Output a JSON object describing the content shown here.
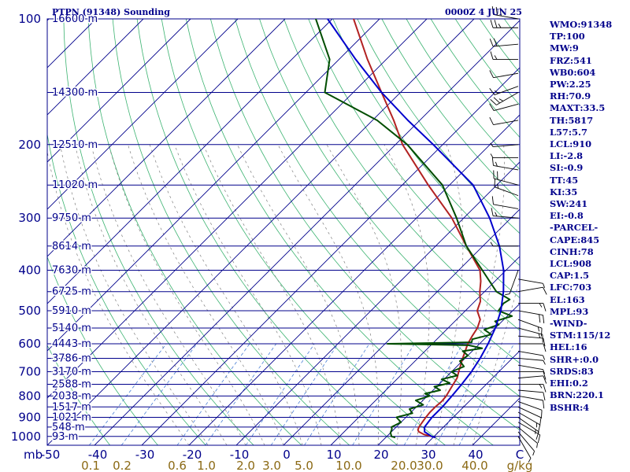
{
  "header": {
    "title": "PTPN (91348) Sounding",
    "time": "0000Z  4 JUN 25"
  },
  "chart_data": {
    "type": "skew-t log-p sounding",
    "y_axis": {
      "label": "mb",
      "pressure_levels": [
        100,
        200,
        300,
        400,
        500,
        600,
        700,
        800,
        900,
        1000
      ],
      "tick_labels": [
        "100",
        "200",
        "300",
        "400",
        "500",
        "600",
        "700",
        "800",
        "900",
        "1000"
      ],
      "range": [
        1050,
        100
      ],
      "scale": "log"
    },
    "x_axis": {
      "label": "°C",
      "temperature_ticks": [
        -50,
        -40,
        -30,
        -20,
        -10,
        0,
        10,
        20,
        30,
        40
      ],
      "tick_labels": [
        "-50",
        "-40",
        "-30",
        "-20",
        "-10",
        "0",
        "10",
        "20",
        "30",
        "40"
      ],
      "range": [
        -50,
        50
      ]
    },
    "mixing_ratio_axis": {
      "label": "g/kg",
      "values": [
        0.1,
        0.2,
        0.6,
        1.0,
        2.0,
        3.0,
        5.0,
        10.0,
        20.0,
        30.0,
        40.0
      ],
      "tick_labels": [
        "0.1",
        "0.2",
        "0.6",
        "1.0",
        "2.0",
        "3.0",
        "5.0",
        "10.0",
        "20.0",
        "30.0",
        "40.0"
      ]
    },
    "height_labels": [
      {
        "p": 100,
        "label": "16600 m"
      },
      {
        "p": 150,
        "label": "14300 m"
      },
      {
        "p": 200,
        "label": "12510 m"
      },
      {
        "p": 250,
        "label": "11020 m"
      },
      {
        "p": 300,
        "label": "9750 m"
      },
      {
        "p": 350,
        "label": "8614 m"
      },
      {
        "p": 400,
        "label": "7630 m"
      },
      {
        "p": 450,
        "label": "6725 m"
      },
      {
        "p": 500,
        "label": "5910 m"
      },
      {
        "p": 550,
        "label": "5140 m"
      },
      {
        "p": 600,
        "label": "4443 m"
      },
      {
        "p": 650,
        "label": "3786 m"
      },
      {
        "p": 700,
        "label": "3170 m"
      },
      {
        "p": 750,
        "label": "2588 m"
      },
      {
        "p": 800,
        "label": "2038 m"
      },
      {
        "p": 850,
        "label": "1517 m"
      },
      {
        "p": 900,
        "label": "1021 m"
      },
      {
        "p": 950,
        "label": "548 m"
      },
      {
        "p": 1000,
        "label": "93 m"
      }
    ],
    "series": [
      {
        "name": "temperature",
        "color": "#b22222",
        "points": [
          [
            1006,
            30.5
          ],
          [
            1000,
            29.5
          ],
          [
            990,
            27.5
          ],
          [
            975,
            25.8
          ],
          [
            965,
            25.2
          ],
          [
            950,
            24.8
          ],
          [
            925,
            24.5
          ],
          [
            900,
            24.2
          ],
          [
            875,
            24.0
          ],
          [
            850,
            24.0
          ],
          [
            825,
            24.2
          ],
          [
            800,
            24.0
          ],
          [
            775,
            23.5
          ],
          [
            750,
            23.0
          ],
          [
            725,
            22.5
          ],
          [
            700,
            21.5
          ],
          [
            650,
            19.5
          ],
          [
            600,
            17.5
          ],
          [
            575,
            16.8
          ],
          [
            550,
            16.2
          ],
          [
            525,
            15.0
          ],
          [
            500,
            12.5
          ],
          [
            475,
            11.2
          ],
          [
            450,
            9.0
          ],
          [
            425,
            7.0
          ],
          [
            400,
            4.5
          ],
          [
            350,
            -3.5
          ],
          [
            300,
            -12.5
          ],
          [
            250,
            -24.5
          ],
          [
            200,
            -38.5
          ],
          [
            175,
            -45.5
          ],
          [
            150,
            -54.0
          ],
          [
            125,
            -64.0
          ],
          [
            100,
            -75.5
          ],
          [
            88,
            -81.0
          ]
        ]
      },
      {
        "name": "dewpoint",
        "color": "#004d00",
        "points": [
          [
            1006,
            22.0
          ],
          [
            1000,
            21.0
          ],
          [
            980,
            20.0
          ],
          [
            960,
            19.5
          ],
          [
            950,
            19.0
          ],
          [
            925,
            20.0
          ],
          [
            900,
            18.0
          ],
          [
            880,
            20.5
          ],
          [
            860,
            19.0
          ],
          [
            840,
            21.0
          ],
          [
            820,
            18.5
          ],
          [
            800,
            20.5
          ],
          [
            790,
            19.0
          ],
          [
            775,
            21.5
          ],
          [
            760,
            19.5
          ],
          [
            745,
            22.0
          ],
          [
            730,
            19.5
          ],
          [
            715,
            22.0
          ],
          [
            700,
            20.0
          ],
          [
            680,
            21.5
          ],
          [
            660,
            19.5
          ],
          [
            640,
            20.0
          ],
          [
            625,
            18.0
          ],
          [
            615,
            21.5
          ],
          [
            605,
            18.0
          ],
          [
            600,
            0.5
          ],
          [
            595,
            18.0
          ],
          [
            585,
            17.5
          ],
          [
            570,
            20.5
          ],
          [
            555,
            18.0
          ],
          [
            540,
            20.0
          ],
          [
            530,
            18.5
          ],
          [
            515,
            21.0
          ],
          [
            500,
            17.0
          ],
          [
            480,
            16.5
          ],
          [
            470,
            17.0
          ],
          [
            450,
            12.5
          ],
          [
            400,
            5.0
          ],
          [
            350,
            -3.5
          ],
          [
            300,
            -11.5
          ],
          [
            250,
            -21.5
          ],
          [
            200,
            -37.5
          ],
          [
            175,
            -49.0
          ],
          [
            150,
            -66.0
          ],
          [
            125,
            -72.0
          ],
          [
            100,
            -83.5
          ],
          [
            88,
            -90.0
          ]
        ]
      },
      {
        "name": "parcel",
        "color": "#0000cd",
        "points": [
          [
            1006,
            30.5
          ],
          [
            1000,
            29.5
          ],
          [
            975,
            27.0
          ],
          [
            950,
            26.0
          ],
          [
            900,
            25.5
          ],
          [
            850,
            25.5
          ],
          [
            800,
            25.2
          ],
          [
            750,
            24.8
          ],
          [
            700,
            24.2
          ],
          [
            650,
            23.2
          ],
          [
            600,
            21.8
          ],
          [
            550,
            20.0
          ],
          [
            500,
            17.5
          ],
          [
            450,
            14.0
          ],
          [
            400,
            9.5
          ],
          [
            350,
            3.5
          ],
          [
            300,
            -4.5
          ],
          [
            250,
            -15.0
          ],
          [
            200,
            -32.0
          ],
          [
            175,
            -42.5
          ],
          [
            150,
            -54.0
          ],
          [
            125,
            -66.5
          ],
          [
            100,
            -81.0
          ],
          [
            88,
            -88.0
          ]
        ]
      }
    ],
    "wind_barbs": [
      {
        "p": 90,
        "dir": 280,
        "spd": 20
      },
      {
        "p": 95,
        "dir": 275,
        "spd": 25
      },
      {
        "p": 100,
        "dir": 280,
        "spd": 30
      },
      {
        "p": 105,
        "dir": 270,
        "spd": 25
      },
      {
        "p": 115,
        "dir": 265,
        "spd": 20
      },
      {
        "p": 125,
        "dir": 270,
        "spd": 15
      },
      {
        "p": 135,
        "dir": 260,
        "spd": 10
      },
      {
        "p": 145,
        "dir": 250,
        "spd": 15
      },
      {
        "p": 150,
        "dir": 240,
        "spd": 25
      },
      {
        "p": 160,
        "dir": 255,
        "spd": 10
      },
      {
        "p": 175,
        "dir": 260,
        "spd": 10
      },
      {
        "p": 200,
        "dir": 265,
        "spd": 5
      },
      {
        "p": 215,
        "dir": 270,
        "spd": 5
      },
      {
        "p": 230,
        "dir": 280,
        "spd": 15
      },
      {
        "p": 250,
        "dir": 285,
        "spd": 20
      },
      {
        "p": 265,
        "dir": 290,
        "spd": 15
      },
      {
        "p": 285,
        "dir": 280,
        "spd": 10
      },
      {
        "p": 300,
        "dir": 275,
        "spd": 15
      },
      {
        "p": 350,
        "dir": 270,
        "spd": 5
      },
      {
        "p": 400,
        "dir": 200,
        "spd": 5
      },
      {
        "p": 420,
        "dir": 100,
        "spd": 5
      },
      {
        "p": 450,
        "dir": 80,
        "spd": 10
      },
      {
        "p": 480,
        "dir": 90,
        "spd": 15
      },
      {
        "p": 500,
        "dir": 100,
        "spd": 20
      },
      {
        "p": 525,
        "dir": 110,
        "spd": 15
      },
      {
        "p": 550,
        "dir": 105,
        "spd": 15
      },
      {
        "p": 575,
        "dir": 95,
        "spd": 10
      },
      {
        "p": 600,
        "dir": 90,
        "spd": 10
      },
      {
        "p": 625,
        "dir": 100,
        "spd": 5
      },
      {
        "p": 650,
        "dir": 95,
        "spd": 5
      },
      {
        "p": 675,
        "dir": 100,
        "spd": 5
      },
      {
        "p": 700,
        "dir": 90,
        "spd": 10
      },
      {
        "p": 725,
        "dir": 85,
        "spd": 10
      },
      {
        "p": 750,
        "dir": 90,
        "spd": 15
      },
      {
        "p": 775,
        "dir": 95,
        "spd": 10
      },
      {
        "p": 800,
        "dir": 100,
        "spd": 10
      },
      {
        "p": 825,
        "dir": 110,
        "spd": 10
      },
      {
        "p": 850,
        "dir": 115,
        "spd": 10
      },
      {
        "p": 875,
        "dir": 120,
        "spd": 15
      },
      {
        "p": 900,
        "dir": 125,
        "spd": 15
      },
      {
        "p": 925,
        "dir": 120,
        "spd": 10
      },
      {
        "p": 950,
        "dir": 130,
        "spd": 5
      },
      {
        "p": 975,
        "dir": 140,
        "spd": 5
      },
      {
        "p": 1000,
        "dir": 150,
        "spd": 5
      }
    ],
    "colors": {
      "isobar": "#00008b",
      "isotherm": "#00008b",
      "dry_adiabat": "#3cb371",
      "moist_adiabat": "#808080",
      "mixing_ratio": "#4a7fd4",
      "text": "#00008b",
      "mixing_ratio_labels": "#8b6914"
    }
  },
  "stats": [
    "WMO:91348",
    "TP:100",
    "MW:9",
    "FRZ:541",
    "WB0:604",
    "PW:2.25",
    "RH:70.9",
    "MAXT:33.5",
    "TH:5817",
    "L57:5.7",
    "LCL:910",
    "LI:-2.8",
    "SI:-0.9",
    "TT:45",
    "KI:35",
    "SW:241",
    "EI:-0.8",
    "-PARCEL-",
    "CAPE:845",
    "CINH:78",
    "LCL:908",
    "CAP:1.5",
    "LFC:703",
    "EL:163",
    "MPL:93",
    "-WIND-",
    "STM:115/12",
    "HEL:16",
    "SHR+:0.0",
    "SRDS:83",
    "EHI:0.2",
    "BRN:220.1",
    "BSHR:4"
  ]
}
